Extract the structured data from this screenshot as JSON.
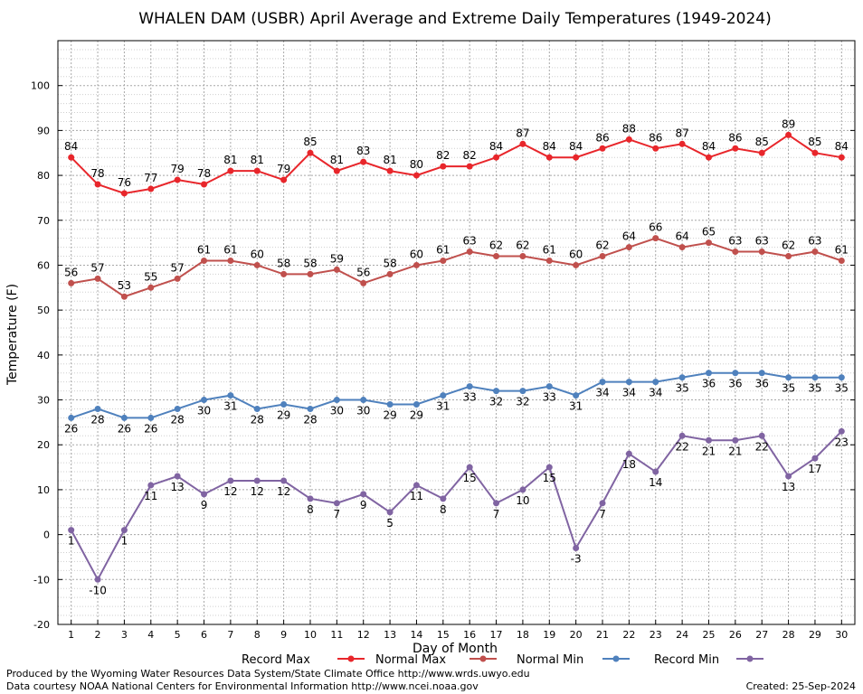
{
  "chart_data": {
    "type": "line",
    "title": "WHALEN DAM (USBR) April Average and Extreme Daily Temperatures (1949-2024)",
    "xlabel": "Day of Month",
    "ylabel": "Temperature (F)",
    "xlim": [
      0.5,
      30.5
    ],
    "ylim": [
      -20,
      110
    ],
    "yticks": [
      -20,
      -10,
      0,
      10,
      20,
      30,
      40,
      50,
      60,
      70,
      80,
      90,
      100
    ],
    "x": [
      1,
      2,
      3,
      4,
      5,
      6,
      7,
      8,
      9,
      10,
      11,
      12,
      13,
      14,
      15,
      16,
      17,
      18,
      19,
      20,
      21,
      22,
      23,
      24,
      25,
      26,
      27,
      28,
      29,
      30
    ],
    "grid": true,
    "legend_position": "bottom",
    "series": [
      {
        "name": "Record Max",
        "color": "#e8262b",
        "label_side": "above",
        "values": [
          84,
          78,
          76,
          77,
          79,
          78,
          81,
          81,
          79,
          85,
          81,
          83,
          81,
          80,
          82,
          82,
          84,
          87,
          84,
          84,
          86,
          88,
          86,
          87,
          84,
          86,
          85,
          89,
          85,
          84
        ]
      },
      {
        "name": "Normal Max",
        "color": "#c0504d",
        "label_side": "above",
        "values": [
          56,
          57,
          53,
          55,
          57,
          61,
          61,
          60,
          58,
          58,
          59,
          56,
          58,
          60,
          61,
          63,
          62,
          62,
          61,
          60,
          62,
          64,
          66,
          64,
          65,
          63,
          63,
          62,
          63,
          61
        ]
      },
      {
        "name": "Normal Min",
        "color": "#4f81bd",
        "label_side": "below",
        "values": [
          26,
          28,
          26,
          26,
          28,
          30,
          31,
          28,
          29,
          28,
          30,
          30,
          29,
          29,
          31,
          33,
          32,
          32,
          33,
          31,
          34,
          34,
          34,
          35,
          36,
          36,
          36,
          35,
          35,
          35
        ]
      },
      {
        "name": "Record Min",
        "color": "#8064a2",
        "label_side": "below",
        "values": [
          1,
          -10,
          1,
          11,
          13,
          9,
          12,
          12,
          12,
          8,
          7,
          9,
          5,
          11,
          8,
          15,
          7,
          10,
          15,
          -3,
          7,
          18,
          14,
          22,
          21,
          21,
          22,
          13,
          17,
          23
        ]
      }
    ]
  },
  "footer": {
    "produced_by": "Produced by the Wyoming Water Resources Data System/State Climate Office http://www.wrds.uwyo.edu",
    "data_courtesy": "Data courtesy NOAA National Centers for Environmental Information http://www.ncei.noaa.gov",
    "created": "Created:  25-Sep-2024"
  }
}
